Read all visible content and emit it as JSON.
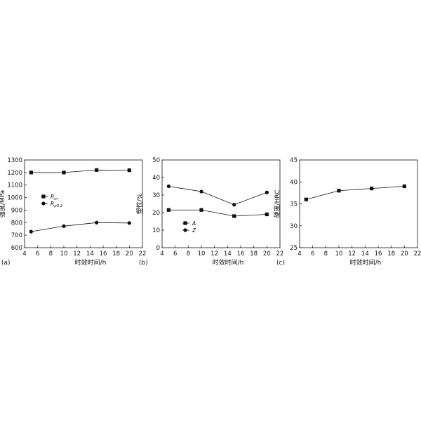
{
  "chart_data": [
    {
      "type": "line",
      "panel_label": "(a)",
      "xlabel": "时效时间/h",
      "ylabel": "强度/MPa",
      "xlim": [
        4,
        22
      ],
      "ylim": [
        600,
        1300
      ],
      "xticks": [
        4,
        6,
        8,
        10,
        12,
        14,
        16,
        18,
        20,
        22
      ],
      "yticks": [
        600,
        700,
        800,
        900,
        1000,
        1100,
        1200,
        1300
      ],
      "x": [
        5,
        10,
        15,
        20
      ],
      "legend_position": "left",
      "series": [
        {
          "name": "Rm",
          "marker": "square",
          "values": [
            1200,
            1200,
            1220,
            1218
          ]
        },
        {
          "name": "Rp0.2",
          "marker": "circle",
          "values": [
            728,
            772,
            800,
            797
          ]
        }
      ]
    },
    {
      "type": "line",
      "panel_label": "(b)",
      "xlabel": "时效时间/h",
      "ylabel": "塑性/%",
      "xlim": [
        4,
        22
      ],
      "ylim": [
        0,
        50
      ],
      "xticks": [
        4,
        6,
        8,
        10,
        12,
        14,
        16,
        18,
        20,
        22
      ],
      "yticks": [
        0,
        10,
        20,
        30,
        40,
        50
      ],
      "x": [
        5,
        10,
        15,
        20
      ],
      "legend_position": "bottom-left",
      "series": [
        {
          "name": "A",
          "marker": "square",
          "values": [
            21.5,
            21.5,
            18,
            19
          ]
        },
        {
          "name": "Z",
          "marker": "circle",
          "values": [
            35,
            32,
            24.5,
            31.5
          ]
        }
      ]
    },
    {
      "type": "line",
      "panel_label": "(c)",
      "xlabel": "时效时间/h",
      "ylabel": "硬度/HRC",
      "xlim": [
        4,
        22
      ],
      "ylim": [
        25,
        45
      ],
      "xticks": [
        4,
        6,
        8,
        10,
        12,
        14,
        16,
        18,
        20,
        22
      ],
      "yticks": [
        25,
        30,
        35,
        40,
        45
      ],
      "x": [
        5,
        10,
        15,
        20
      ],
      "series": [
        {
          "marker": "square",
          "values": [
            36,
            38,
            38.5,
            39
          ]
        }
      ]
    }
  ]
}
